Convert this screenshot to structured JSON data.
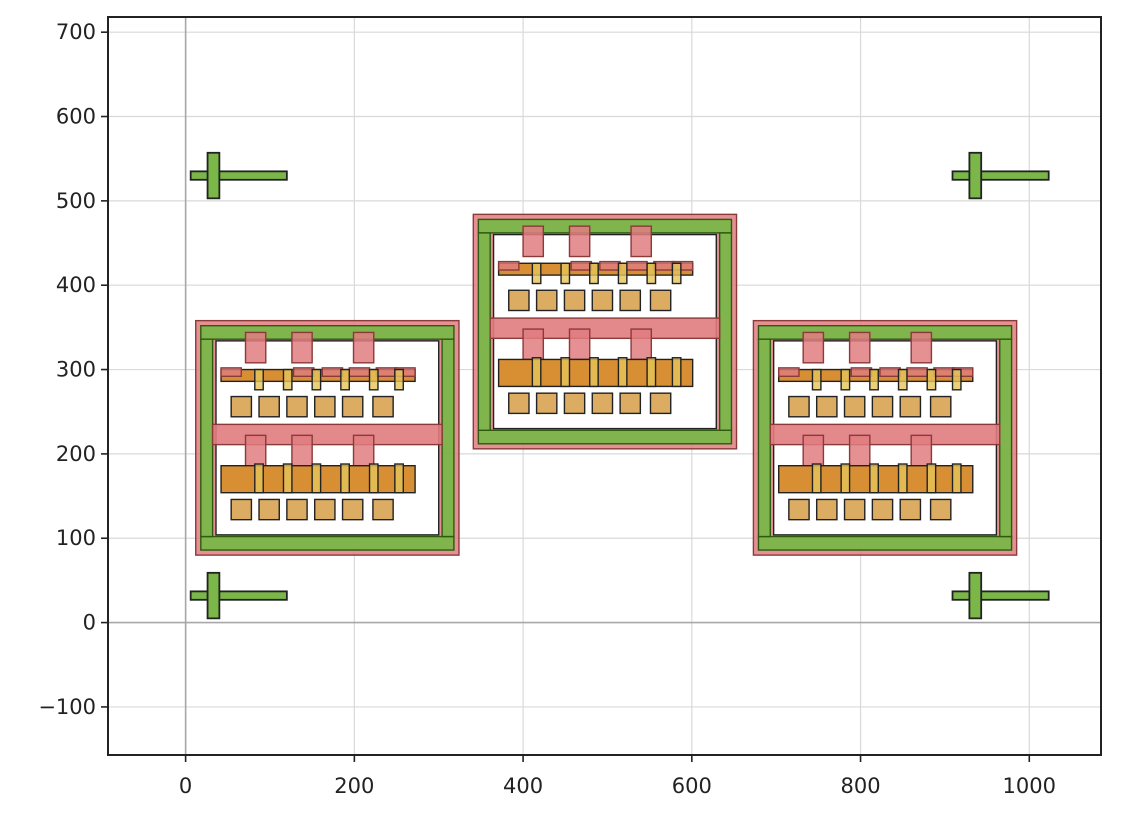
{
  "chart_data": {
    "type": "layout",
    "xlim": [
      -92,
      1085
    ],
    "ylim": [
      -157,
      718
    ],
    "grid": true,
    "x_ticks": [
      0,
      200,
      400,
      600,
      800,
      1000
    ],
    "y_ticks": [
      -100,
      0,
      100,
      200,
      300,
      400,
      500,
      600,
      700
    ],
    "x_tick_labels": [
      "0",
      "200",
      "400",
      "600",
      "800",
      "1000"
    ],
    "y_tick_labels": [
      "−100",
      "0",
      "100",
      "200",
      "300",
      "400",
      "500",
      "600",
      "700"
    ],
    "reference_lines": {
      "x": 0,
      "y": 0
    },
    "colors": {
      "green_fill": "#7ab648",
      "green_edge": "#2e5a10",
      "red_fill": "#e07c80",
      "red_edge": "#8b3a3a",
      "orange_fill": "#d4831e",
      "tan_fill": "#d9a85a",
      "yellow_fill": "#e6c45a",
      "dark_edge": "#222222",
      "grid": "#d9d9d9",
      "axis_line": "#a8a8a8"
    },
    "marks": [
      {
        "kind": "cross",
        "cx": 33,
        "cy": 530
      },
      {
        "kind": "cross",
        "cx": 936,
        "cy": 530
      },
      {
        "kind": "cross",
        "cx": 33,
        "cy": 32
      },
      {
        "kind": "cross",
        "cx": 936,
        "cy": 32
      }
    ],
    "cells": [
      {
        "name": "left-cell",
        "x0": 12,
        "y0": 80,
        "x1": 324,
        "y1": 358
      },
      {
        "name": "center-cell",
        "x0": 341,
        "y0": 206,
        "x1": 653,
        "y1": 484
      },
      {
        "name": "right-cell",
        "x0": 673,
        "y0": 80,
        "x1": 985,
        "y1": 358
      }
    ]
  }
}
